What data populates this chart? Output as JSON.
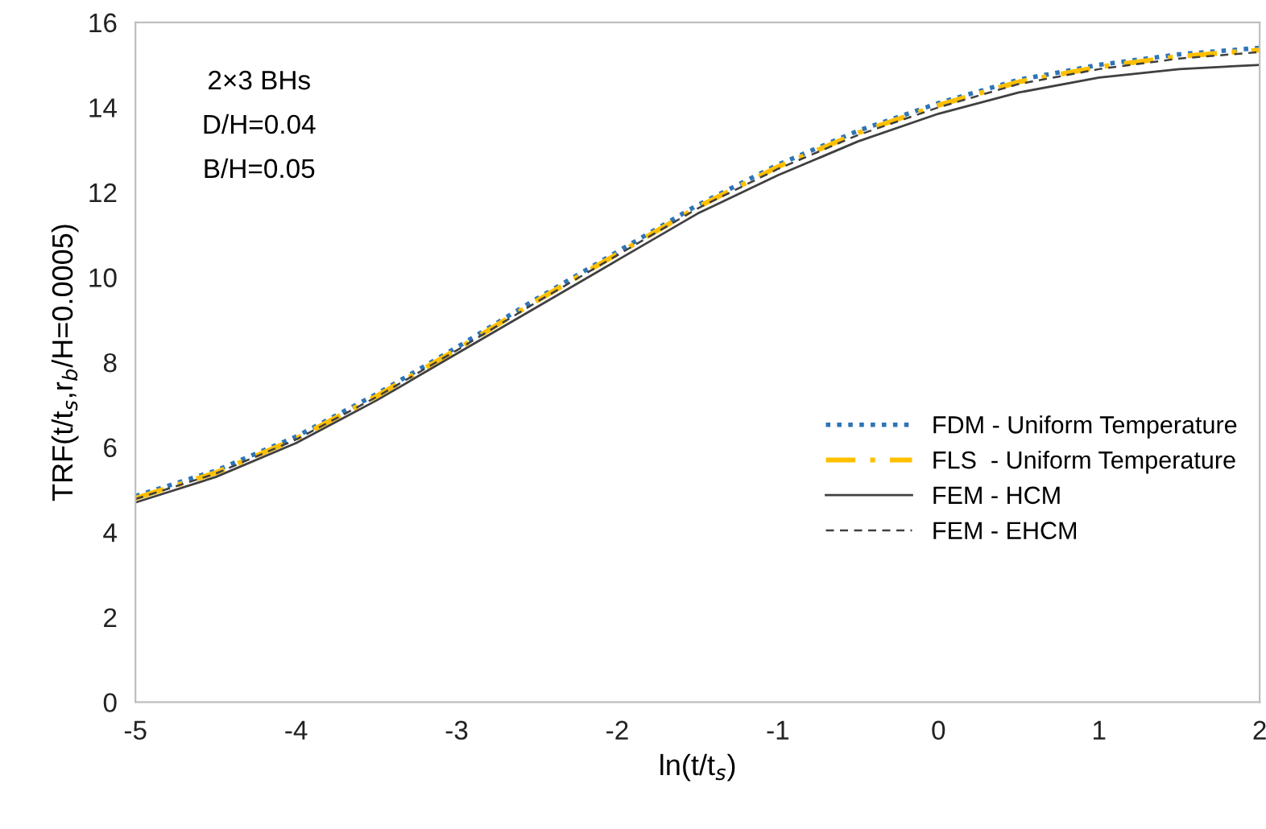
{
  "chart_data": {
    "type": "line",
    "xlabel": "ln(t/t$_{s}$)",
    "ylabel": "TRF(t/t$_{s}$,r$_{b}$/H=0.0005)",
    "x": [
      -5,
      -4.5,
      -4,
      -3.5,
      -3,
      -2.5,
      -2,
      -1.5,
      -1,
      -0.5,
      0,
      0.5,
      1,
      1.5,
      2
    ],
    "series": [
      {
        "name": "FDM - Uniform Temperature",
        "color": "#2e75b6",
        "line_style": "dotted",
        "values": [
          4.85,
          5.45,
          6.25,
          7.25,
          8.35,
          9.5,
          10.6,
          11.7,
          12.65,
          13.45,
          14.1,
          14.65,
          15.0,
          15.25,
          15.4
        ]
      },
      {
        "name": "FLS  - Uniform Temperature",
        "color": "#ffc000",
        "line_style": "dashdot",
        "values": [
          4.8,
          5.4,
          6.2,
          7.2,
          8.3,
          9.45,
          10.55,
          11.65,
          12.6,
          13.4,
          14.05,
          14.6,
          14.95,
          15.2,
          15.35
        ]
      },
      {
        "name": "FEM - HCM",
        "color": "#404040",
        "line_style": "solid",
        "values": [
          4.7,
          5.3,
          6.1,
          7.1,
          8.2,
          9.3,
          10.4,
          11.5,
          12.4,
          13.2,
          13.85,
          14.35,
          14.7,
          14.9,
          15.0
        ]
      },
      {
        "name": "FEM - EHCM",
        "color": "#404040",
        "line_style": "dashed",
        "values": [
          4.78,
          5.38,
          6.18,
          7.18,
          8.28,
          9.42,
          10.52,
          11.62,
          12.55,
          13.35,
          14.0,
          14.55,
          14.9,
          15.15,
          15.3
        ]
      }
    ],
    "annotations": [
      "2×3 BHs",
      "D/H=0.04",
      "B/H=0.05"
    ],
    "xlim": [
      -5,
      2
    ],
    "xticks": [
      -5,
      -4,
      -3,
      -2,
      -1,
      0,
      1,
      2
    ],
    "ylim": [
      0,
      16
    ],
    "yticks": [
      0,
      2,
      4,
      6,
      8,
      10,
      12,
      14,
      16
    ],
    "grid": false,
    "legend": "bottom right",
    "marker": "none"
  }
}
